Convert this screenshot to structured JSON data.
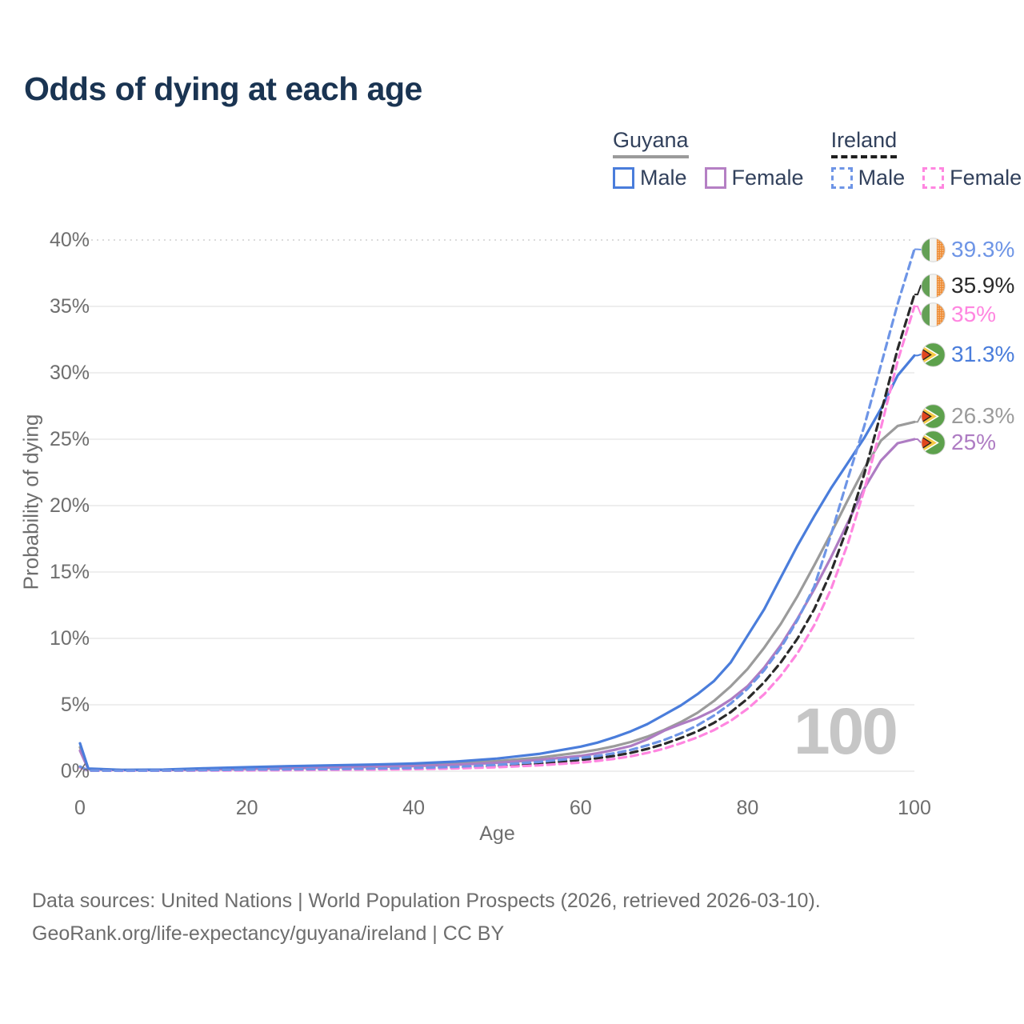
{
  "title": "Odds of dying at each age",
  "age_counter": "100",
  "legend": {
    "groups": [
      {
        "label": "Guyana",
        "line_style": "solid",
        "underline_color": "#9b9b9b",
        "items": [
          {
            "label": "Male",
            "color": "#4a7ddb"
          },
          {
            "label": "Female",
            "color": "#b580c4"
          }
        ]
      },
      {
        "label": "Ireland",
        "line_style": "dashed",
        "underline_color": "#1f1f1f",
        "items": [
          {
            "label": "Male",
            "color": "#6e95e6"
          },
          {
            "label": "Female",
            "color": "#ff86e0"
          }
        ]
      }
    ]
  },
  "axes": {
    "y": {
      "label": "Probability of dying",
      "ticks": [
        "0%",
        "5%",
        "10%",
        "15%",
        "20%",
        "25%",
        "30%",
        "35%",
        "40%"
      ],
      "tick_values": [
        0,
        5,
        10,
        15,
        20,
        25,
        30,
        35,
        40
      ]
    },
    "x": {
      "label": "Age",
      "ticks": [
        "0",
        "20",
        "40",
        "60",
        "80",
        "100"
      ],
      "tick_values": [
        0,
        20,
        40,
        60,
        80,
        100
      ]
    }
  },
  "chart_data": {
    "type": "line",
    "title": "Odds of dying at each age",
    "xlabel": "Age",
    "ylabel": "Probability of dying",
    "xlim": [
      0,
      100
    ],
    "ylim": [
      0,
      40
    ],
    "y_unit": "%",
    "grid": "horizontal",
    "x": [
      0,
      1,
      5,
      10,
      15,
      20,
      25,
      30,
      35,
      40,
      45,
      50,
      55,
      60,
      62,
      64,
      66,
      68,
      70,
      72,
      74,
      76,
      78,
      80,
      82,
      84,
      86,
      88,
      90,
      92,
      94,
      96,
      98,
      100
    ],
    "series": [
      {
        "id": "guyana-total",
        "name": "Guyana Both sexes",
        "country": "Guyana",
        "sex": "both",
        "color": "#9b9b9b",
        "dash": false,
        "flag": "guyana",
        "end_label": "26.3%",
        "values": [
          1.8,
          0.17,
          0.09,
          0.1,
          0.16,
          0.23,
          0.29,
          0.35,
          0.41,
          0.47,
          0.58,
          0.76,
          1.02,
          1.42,
          1.62,
          1.88,
          2.2,
          2.6,
          3.1,
          3.7,
          4.4,
          5.3,
          6.4,
          7.7,
          9.3,
          11.1,
          13.2,
          15.5,
          17.9,
          20.4,
          22.8,
          24.9,
          26.0,
          26.3
        ]
      },
      {
        "id": "guyana-female",
        "name": "Guyana Female",
        "country": "Guyana",
        "sex": "female",
        "color": "#ae7cc3",
        "dash": false,
        "flag": "guyana",
        "end_label": "25%",
        "values": [
          1.55,
          0.15,
          0.08,
          0.09,
          0.12,
          0.17,
          0.22,
          0.27,
          0.32,
          0.38,
          0.48,
          0.63,
          0.85,
          1.15,
          1.35,
          1.6,
          1.9,
          2.4,
          3.05,
          3.55,
          4.0,
          4.6,
          5.4,
          6.4,
          7.8,
          9.5,
          11.5,
          13.7,
          16.1,
          18.7,
          21.3,
          23.4,
          24.7,
          25.0
        ]
      },
      {
        "id": "guyana-male",
        "name": "Guyana Male",
        "country": "Guyana",
        "sex": "male",
        "color": "#4a7ddb",
        "dash": false,
        "flag": "guyana",
        "end_label": "31.3%",
        "values": [
          2.1,
          0.2,
          0.1,
          0.12,
          0.22,
          0.3,
          0.38,
          0.44,
          0.5,
          0.58,
          0.72,
          0.95,
          1.3,
          1.85,
          2.15,
          2.55,
          3.0,
          3.55,
          4.25,
          4.95,
          5.8,
          6.8,
          8.2,
          10.2,
          12.2,
          14.6,
          17.0,
          19.2,
          21.3,
          23.2,
          25.1,
          27.3,
          29.8,
          31.3
        ]
      },
      {
        "id": "ireland-total",
        "name": "Ireland Both sexes",
        "country": "Ireland",
        "sex": "both",
        "color": "#2a2a2a",
        "dash": true,
        "flag": "ireland",
        "end_label": "35.9%",
        "values": [
          0.33,
          0.05,
          0.04,
          0.04,
          0.07,
          0.1,
          0.12,
          0.14,
          0.17,
          0.21,
          0.28,
          0.4,
          0.58,
          0.85,
          0.98,
          1.15,
          1.38,
          1.68,
          2.05,
          2.5,
          3.0,
          3.65,
          4.45,
          5.45,
          6.7,
          8.2,
          10.0,
          12.2,
          15.0,
          18.4,
          22.4,
          27.0,
          31.8,
          35.9
        ]
      },
      {
        "id": "ireland-female",
        "name": "Ireland Female",
        "country": "Ireland",
        "sex": "female",
        "color": "#ff86e0",
        "dash": true,
        "flag": "ireland",
        "end_label": "35%",
        "values": [
          0.28,
          0.04,
          0.03,
          0.04,
          0.05,
          0.06,
          0.08,
          0.1,
          0.12,
          0.15,
          0.21,
          0.3,
          0.44,
          0.65,
          0.78,
          0.93,
          1.12,
          1.38,
          1.7,
          2.1,
          2.55,
          3.1,
          3.8,
          4.7,
          5.8,
          7.2,
          8.9,
          11.0,
          13.7,
          17.1,
          21.2,
          25.9,
          30.9,
          35.0
        ]
      },
      {
        "id": "ireland-male",
        "name": "Ireland Male",
        "country": "Ireland",
        "sex": "male",
        "color": "#6e95e6",
        "dash": true,
        "flag": "ireland",
        "end_label": "39.3%",
        "values": [
          0.35,
          0.05,
          0.04,
          0.05,
          0.08,
          0.12,
          0.14,
          0.16,
          0.2,
          0.24,
          0.33,
          0.48,
          0.7,
          1.0,
          1.15,
          1.35,
          1.6,
          1.95,
          2.35,
          2.85,
          3.45,
          4.2,
          5.1,
          6.2,
          7.6,
          9.3,
          11.4,
          13.9,
          17.8,
          22.0,
          26.0,
          30.6,
          35.2,
          39.3
        ]
      }
    ],
    "end_label_order": [
      5,
      3,
      4,
      2,
      0,
      1
    ],
    "legend_position": "top-right"
  },
  "footer": {
    "line1": "Data sources: United Nations | World Population Prospects (2026, retrieved 2026-03-10).",
    "line2": "GeoRank.org/life-expectancy/guyana/ireland | CC BY"
  }
}
